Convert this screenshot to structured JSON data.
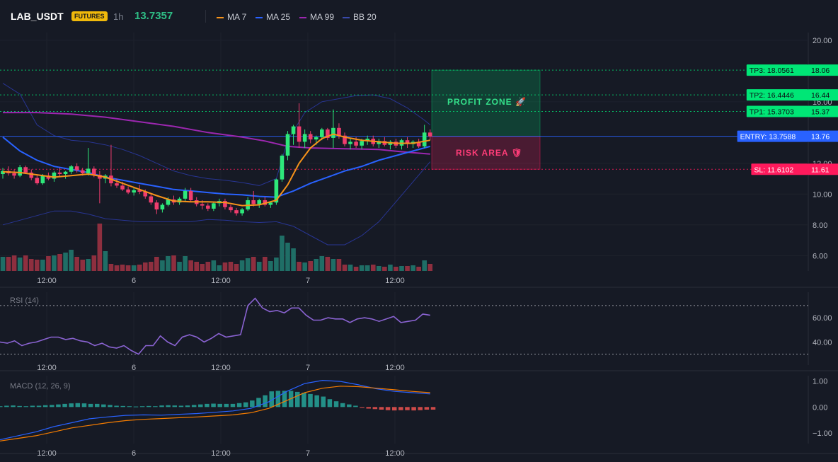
{
  "header": {
    "symbol": "LAB_USDT",
    "badge": "FUTURES",
    "timeframe": "1h",
    "last_price": "13.7357",
    "legend": [
      {
        "label": "MA 7",
        "color": "#f7931a"
      },
      {
        "label": "MA 25",
        "color": "#2962ff"
      },
      {
        "label": "MA 99",
        "color": "#9c27b0"
      },
      {
        "label": "BB 20",
        "color": "#283593"
      }
    ]
  },
  "colors": {
    "up": "#26a69a",
    "up_bright": "#2ee87a",
    "down": "#ef3d6e",
    "vol_up": "#1f6e66",
    "vol_down": "#8e2f3f",
    "tp": "#00e676",
    "entry": "#2962ff",
    "sl": "#ff1a5c",
    "ma7": "#f7931a",
    "ma25": "#2962ff",
    "ma99": "#9c27b0",
    "bb": "#283593",
    "rsi": "#8a63d2",
    "macd": "#2962ff",
    "signal": "#f57c00",
    "hist_up": "#26a69a",
    "hist_down": "#ef5350"
  },
  "chart_data": [
    {
      "type": "candlestick",
      "title": "",
      "x_tick_labels": [
        "12:00",
        "6",
        "12:00",
        "7",
        "12:00"
      ],
      "y_tick_labels": [
        "20.00",
        "16.00",
        "12.00",
        "10.00",
        "8.00",
        "6.00"
      ],
      "ylim": [
        5.0,
        20.5
      ],
      "volume_overlay": true,
      "candles": [
        [
          11.3,
          11.7,
          11.0,
          11.5
        ],
        [
          11.5,
          11.8,
          11.2,
          11.35
        ],
        [
          11.35,
          11.6,
          11.0,
          11.2
        ],
        [
          11.2,
          11.9,
          11.1,
          11.75
        ],
        [
          11.75,
          11.85,
          11.3,
          11.4
        ],
        [
          11.4,
          11.6,
          10.9,
          11.05
        ],
        [
          11.05,
          11.2,
          10.6,
          10.7
        ],
        [
          10.7,
          11.3,
          10.6,
          11.2
        ],
        [
          11.2,
          11.4,
          10.9,
          11.0
        ],
        [
          11.0,
          11.5,
          10.8,
          11.4
        ],
        [
          11.4,
          11.7,
          11.1,
          11.3
        ],
        [
          11.3,
          11.5,
          11.0,
          11.45
        ],
        [
          11.45,
          11.9,
          11.3,
          11.8
        ],
        [
          11.8,
          12.0,
          11.4,
          11.55
        ],
        [
          11.55,
          11.7,
          11.2,
          11.35
        ],
        [
          11.35,
          13.0,
          11.2,
          11.65
        ],
        [
          11.65,
          11.8,
          11.1,
          11.25
        ],
        [
          11.25,
          11.5,
          9.4,
          11.0
        ],
        [
          11.0,
          11.3,
          10.7,
          11.2
        ],
        [
          11.2,
          13.2,
          10.5,
          10.7
        ],
        [
          10.7,
          11.0,
          10.4,
          10.55
        ],
        [
          10.55,
          10.8,
          10.2,
          10.3
        ],
        [
          10.3,
          10.5,
          10.0,
          10.1
        ],
        [
          10.1,
          10.4,
          9.9,
          10.25
        ],
        [
          10.25,
          10.6,
          10.0,
          10.15
        ],
        [
          10.15,
          10.3,
          9.7,
          9.85
        ],
        [
          9.85,
          10.0,
          9.3,
          9.45
        ],
        [
          9.45,
          9.6,
          8.7,
          9.0
        ],
        [
          9.0,
          9.4,
          8.8,
          9.3
        ],
        [
          9.3,
          9.8,
          9.2,
          9.65
        ],
        [
          9.65,
          9.9,
          9.3,
          9.45
        ],
        [
          9.45,
          9.8,
          9.3,
          9.7
        ],
        [
          9.7,
          10.4,
          9.5,
          10.2
        ],
        [
          10.2,
          10.4,
          9.5,
          9.6
        ],
        [
          9.6,
          9.8,
          9.2,
          9.35
        ],
        [
          9.35,
          9.6,
          9.0,
          9.25
        ],
        [
          9.25,
          9.4,
          8.9,
          9.05
        ],
        [
          9.05,
          9.5,
          8.9,
          9.4
        ],
        [
          9.4,
          9.7,
          9.2,
          9.55
        ],
        [
          9.55,
          9.7,
          9.0,
          9.15
        ],
        [
          9.15,
          9.3,
          8.8,
          8.95
        ],
        [
          8.95,
          9.1,
          8.6,
          8.75
        ],
        [
          8.75,
          9.1,
          8.6,
          9.0
        ],
        [
          9.0,
          9.8,
          8.9,
          9.6
        ],
        [
          9.6,
          10.2,
          9.2,
          9.35
        ],
        [
          9.35,
          9.7,
          9.1,
          9.6
        ],
        [
          9.6,
          9.8,
          9.2,
          9.3
        ],
        [
          9.3,
          9.5,
          9.1,
          9.45
        ],
        [
          9.45,
          11.0,
          9.3,
          10.95
        ],
        [
          10.95,
          12.6,
          10.8,
          12.5
        ],
        [
          12.5,
          14.1,
          12.2,
          13.9
        ],
        [
          13.9,
          14.5,
          13.2,
          14.4
        ],
        [
          14.4,
          15.9,
          13.0,
          13.4
        ],
        [
          13.4,
          14.2,
          13.0,
          13.9
        ],
        [
          13.9,
          14.1,
          13.3,
          13.55
        ],
        [
          13.55,
          13.8,
          13.2,
          13.7
        ],
        [
          13.7,
          14.3,
          13.5,
          14.2
        ],
        [
          14.2,
          14.3,
          13.5,
          13.65
        ],
        [
          13.65,
          15.5,
          13.0,
          14.3
        ],
        [
          14.3,
          14.6,
          13.6,
          13.8
        ],
        [
          13.8,
          14.0,
          13.1,
          13.25
        ],
        [
          13.25,
          13.6,
          12.9,
          13.4
        ],
        [
          13.4,
          13.7,
          13.0,
          13.15
        ],
        [
          13.15,
          13.6,
          12.9,
          13.45
        ],
        [
          13.45,
          13.8,
          13.2,
          13.6
        ],
        [
          13.6,
          13.8,
          13.1,
          13.25
        ],
        [
          13.25,
          13.6,
          13.0,
          13.45
        ],
        [
          13.45,
          13.7,
          13.1,
          13.2
        ],
        [
          13.2,
          13.5,
          12.9,
          13.4
        ],
        [
          13.4,
          13.6,
          13.0,
          13.15
        ],
        [
          13.15,
          13.6,
          12.9,
          13.5
        ],
        [
          13.5,
          13.7,
          13.0,
          13.25
        ],
        [
          13.25,
          13.5,
          13.0,
          13.4
        ],
        [
          13.4,
          13.6,
          13.0,
          13.1
        ],
        [
          13.1,
          14.5,
          13.0,
          14.0
        ],
        [
          14.0,
          14.2,
          13.5,
          13.74
        ]
      ],
      "volume": [
        20,
        20,
        22,
        19,
        22,
        17,
        16,
        16,
        21,
        22,
        24,
        26,
        30,
        20,
        16,
        17,
        22,
        67,
        28,
        10,
        8,
        9,
        8,
        8,
        9,
        12,
        13,
        20,
        15,
        21,
        22,
        13,
        21,
        15,
        13,
        10,
        13,
        15,
        8,
        12,
        13,
        10,
        15,
        18,
        20,
        13,
        20,
        14,
        19,
        50,
        40,
        32,
        13,
        12,
        14,
        17,
        21,
        20,
        17,
        17,
        9,
        9,
        6,
        8,
        8,
        9,
        7,
        6,
        9,
        6,
        7,
        7,
        8,
        6,
        15,
        10
      ],
      "ma7": [
        [
          0,
          11.45
        ],
        [
          3,
          11.4
        ],
        [
          6,
          11.25
        ],
        [
          9,
          11.1
        ],
        [
          12,
          11.2
        ],
        [
          15,
          11.3
        ],
        [
          18,
          11.1
        ],
        [
          21,
          10.7
        ],
        [
          24,
          10.3
        ],
        [
          27,
          9.9
        ],
        [
          30,
          9.55
        ],
        [
          33,
          9.5
        ],
        [
          36,
          9.5
        ],
        [
          39,
          9.45
        ],
        [
          42,
          9.25
        ],
        [
          45,
          9.3
        ],
        [
          48,
          9.6
        ],
        [
          50,
          10.6
        ],
        [
          52,
          12.0
        ],
        [
          54,
          13.0
        ],
        [
          56,
          13.6
        ],
        [
          58,
          13.9
        ],
        [
          60,
          13.7
        ],
        [
          63,
          13.5
        ],
        [
          66,
          13.4
        ],
        [
          69,
          13.3
        ],
        [
          72,
          13.3
        ],
        [
          75,
          13.5
        ]
      ],
      "ma25": [
        [
          0,
          13.7
        ],
        [
          3,
          12.8
        ],
        [
          6,
          12.2
        ],
        [
          9,
          11.8
        ],
        [
          12,
          11.6
        ],
        [
          15,
          11.4
        ],
        [
          18,
          11.1
        ],
        [
          21,
          10.9
        ],
        [
          24,
          10.7
        ],
        [
          27,
          10.5
        ],
        [
          30,
          10.3
        ],
        [
          33,
          10.2
        ],
        [
          36,
          10.1
        ],
        [
          39,
          10.0
        ],
        [
          42,
          9.95
        ],
        [
          45,
          9.85
        ],
        [
          48,
          9.8
        ],
        [
          51,
          10.2
        ],
        [
          54,
          10.7
        ],
        [
          57,
          11.1
        ],
        [
          60,
          11.5
        ],
        [
          63,
          11.8
        ],
        [
          66,
          12.2
        ],
        [
          69,
          12.5
        ],
        [
          72,
          12.8
        ],
        [
          75,
          13.1
        ]
      ],
      "ma99": [
        [
          0,
          15.3
        ],
        [
          6,
          15.3
        ],
        [
          12,
          15.2
        ],
        [
          18,
          15.0
        ],
        [
          24,
          14.7
        ],
        [
          30,
          14.4
        ],
        [
          36,
          14.0
        ],
        [
          42,
          13.7
        ],
        [
          46,
          13.45
        ],
        [
          50,
          13.1
        ],
        [
          54,
          13.0
        ],
        [
          60,
          12.95
        ],
        [
          66,
          12.9
        ],
        [
          70,
          12.75
        ],
        [
          75,
          12.6
        ]
      ],
      "bb_upper": [
        [
          0,
          17.2
        ],
        [
          3,
          16.5
        ],
        [
          6,
          14.5
        ],
        [
          9,
          13.8
        ],
        [
          12,
          13.5
        ],
        [
          15,
          13.4
        ],
        [
          18,
          13.2
        ],
        [
          21,
          12.9
        ],
        [
          24,
          12.5
        ],
        [
          27,
          12.0
        ],
        [
          30,
          11.5
        ],
        [
          33,
          11.2
        ],
        [
          36,
          11.0
        ],
        [
          39,
          10.9
        ],
        [
          42,
          10.75
        ],
        [
          45,
          10.55
        ],
        [
          48,
          11.0
        ],
        [
          50,
          13.5
        ],
        [
          53,
          15.3
        ],
        [
          56,
          16.0
        ],
        [
          59,
          16.2
        ],
        [
          62,
          16.4
        ],
        [
          65,
          16.45
        ],
        [
          68,
          16.2
        ],
        [
          71,
          15.6
        ],
        [
          74,
          14.8
        ],
        [
          75,
          14.5
        ]
      ],
      "bb_lower": [
        [
          0,
          8.0
        ],
        [
          3,
          8.3
        ],
        [
          6,
          8.6
        ],
        [
          9,
          8.9
        ],
        [
          12,
          8.9
        ],
        [
          15,
          8.7
        ],
        [
          18,
          8.4
        ],
        [
          21,
          8.3
        ],
        [
          24,
          8.2
        ],
        [
          27,
          8.2
        ],
        [
          30,
          8.2
        ],
        [
          33,
          8.2
        ],
        [
          36,
          8.35
        ],
        [
          39,
          8.3
        ],
        [
          42,
          8.2
        ],
        [
          45,
          8.15
        ],
        [
          48,
          8.2
        ],
        [
          51,
          7.9
        ],
        [
          54,
          7.3
        ],
        [
          57,
          6.7
        ],
        [
          60,
          6.7
        ],
        [
          63,
          7.3
        ],
        [
          66,
          8.2
        ],
        [
          69,
          9.5
        ],
        [
          72,
          10.8
        ],
        [
          75,
          12.1
        ]
      ],
      "levels": [
        {
          "label": "TP3: 18.0561",
          "axis_label": "18.06",
          "value": 18.0561,
          "kind": "tp"
        },
        {
          "label": "TP2: 16.4446",
          "axis_label": "16.44",
          "value": 16.4446,
          "kind": "tp"
        },
        {
          "label": "TP1: 15.3703",
          "axis_label": "15.37",
          "value": 15.3703,
          "kind": "tp"
        },
        {
          "label": "ENTRY: 13.7588",
          "axis_label": "13.76",
          "value": 13.7588,
          "kind": "entry"
        },
        {
          "label": "SL: 11.6102",
          "axis_label": "11.61",
          "value": 11.6102,
          "kind": "sl"
        }
      ],
      "zones": [
        {
          "label": "PROFIT ZONE 🚀",
          "from": 13.7588,
          "to": 18.0561,
          "kind": "profit"
        },
        {
          "label": "RISK AREA 🛡",
          "from": 11.6102,
          "to": 13.7588,
          "kind": "risk"
        }
      ]
    },
    {
      "type": "line",
      "title": "RSI (14)",
      "x_tick_labels": [
        "12:00",
        "6",
        "12:00",
        "7",
        "12:00"
      ],
      "y_tick_labels": [
        "60.00",
        "40.00"
      ],
      "ylim": [
        21,
        81
      ],
      "bands": [
        70,
        30
      ],
      "series": [
        {
          "values": [
            40,
            39,
            41,
            37,
            39,
            40,
            42,
            44,
            44,
            42,
            43,
            41,
            40,
            37,
            39,
            36,
            35,
            37,
            33,
            30,
            37,
            37,
            45,
            40,
            37,
            44,
            46,
            44,
            40,
            43,
            47,
            44,
            45,
            46,
            70,
            76,
            68,
            65,
            66,
            64,
            68,
            68,
            62,
            58,
            58,
            60,
            59,
            59,
            56,
            59,
            60,
            59,
            57,
            59,
            61,
            56,
            57,
            58,
            63,
            62
          ]
        }
      ]
    },
    {
      "type": "line",
      "title": "MACD (12, 26, 9)",
      "x_tick_labels": [
        "12:00",
        "6",
        "12:00",
        "7",
        "12:00"
      ],
      "y_tick_labels": [
        "1.00",
        "0.00",
        "−1.00"
      ],
      "ylim": [
        -1.4,
        1.2
      ],
      "series": [
        {
          "values": [
            -1.25,
            -1.1,
            -0.95,
            -0.75,
            -0.6,
            -0.45,
            -0.38,
            -0.32,
            -0.3,
            -0.31,
            -0.28,
            -0.25,
            -0.2,
            -0.15,
            -0.05,
            0.2,
            0.6,
            0.9,
            1.02,
            0.98,
            0.85,
            0.7,
            0.6,
            0.55,
            0.5
          ]
        },
        {
          "values": [
            -1.3,
            -1.2,
            -1.1,
            -0.95,
            -0.8,
            -0.7,
            -0.6,
            -0.52,
            -0.47,
            -0.44,
            -0.41,
            -0.38,
            -0.34,
            -0.3,
            -0.22,
            -0.05,
            0.25,
            0.55,
            0.72,
            0.8,
            0.78,
            0.72,
            0.66,
            0.6,
            0.55
          ]
        }
      ],
      "histogram": [
        0.03,
        0.05,
        0.06,
        0.04,
        0.03,
        0.05,
        0.05,
        0.07,
        0.08,
        0.1,
        0.12,
        0.14,
        0.15,
        0.14,
        0.12,
        0.12,
        0.1,
        0.08,
        0.05,
        0.04,
        0.03,
        0.02,
        0.03,
        0.04,
        0.03,
        0.06,
        0.07,
        0.06,
        0.05,
        0.06,
        0.08,
        0.1,
        0.12,
        0.13,
        0.12,
        0.12,
        0.12,
        0.15,
        0.18,
        0.25,
        0.35,
        0.45,
        0.6,
        0.62,
        0.62,
        0.62,
        0.58,
        0.55,
        0.5,
        0.45,
        0.4,
        0.3,
        0.22,
        0.15,
        0.1,
        0.05,
        -0.03,
        -0.06,
        -0.08,
        -0.1,
        -0.12,
        -0.13,
        -0.12,
        -0.12,
        -0.13,
        -0.12,
        -0.1,
        -0.1
      ]
    }
  ]
}
